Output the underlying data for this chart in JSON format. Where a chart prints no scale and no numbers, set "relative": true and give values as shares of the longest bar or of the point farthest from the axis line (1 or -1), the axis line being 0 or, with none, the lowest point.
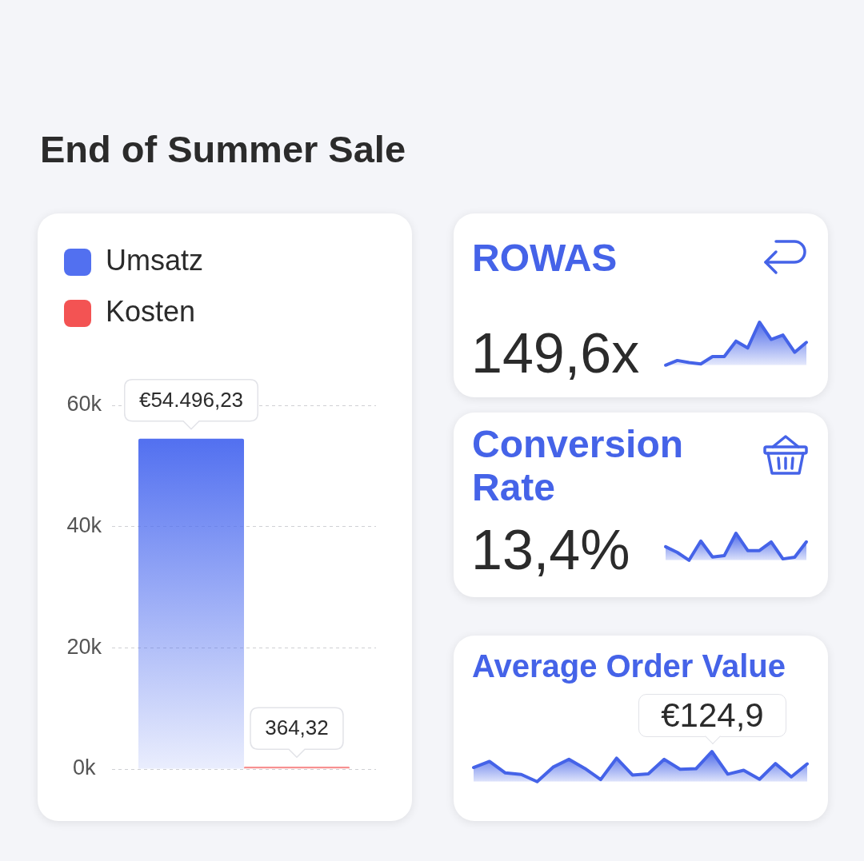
{
  "chart_data": [
    {
      "type": "bar",
      "title": "End of Summer Sale",
      "categories": [
        null
      ],
      "series": [
        {
          "name": "Umsatz",
          "color": "#5270f0",
          "values": [
            54496.23
          ],
          "value_labels": [
            "€54.496,23"
          ]
        },
        {
          "name": "Kosten",
          "color": "#f35353",
          "values": [
            364.32
          ],
          "value_labels": [
            "364,32"
          ]
        }
      ],
      "ylim": [
        0,
        60000
      ],
      "yticks": [
        {
          "value": 0,
          "label": "0k"
        },
        {
          "value": 20000,
          "label": "20k"
        },
        {
          "value": 40000,
          "label": "40k"
        },
        {
          "value": 60000,
          "label": "60k"
        }
      ],
      "grid": "y",
      "legend": "top left",
      "tick_labels": "y"
    },
    {
      "type": "other",
      "title": "ROWAS",
      "annotations": [
        "149,6x"
      ]
    },
    {
      "type": "area",
      "relative": true,
      "categories": [
        null,
        null,
        null,
        null,
        null,
        null,
        null,
        null,
        null,
        null,
        null,
        null,
        null
      ],
      "color": "#4563e8",
      "values": [
        0,
        0.11,
        0.06,
        0.03,
        0.2,
        0.2,
        0.56,
        0.4,
        1,
        0.6,
        0.7,
        0.3,
        0.53
      ]
    },
    {
      "type": "other",
      "title": "Conversion Rate",
      "annotations": [
        "13,4%"
      ]
    },
    {
      "type": "area",
      "relative": true,
      "categories": [
        null,
        null,
        null,
        null,
        null,
        null,
        null,
        null,
        null,
        null,
        null,
        null,
        null
      ],
      "color": "#4563e8",
      "values": [
        0.5,
        0.29,
        0,
        0.71,
        0.12,
        0.17,
        1,
        0.36,
        0.36,
        0.68,
        0.05,
        0.11,
        0.68
      ]
    },
    {
      "type": "other",
      "title": "Average Order Value",
      "annotations": [
        "€124,9"
      ]
    },
    {
      "type": "area",
      "relative": true,
      "categories": [
        null,
        null,
        null,
        null,
        null,
        null,
        null,
        null,
        null,
        null,
        null,
        null,
        null,
        null,
        null,
        null,
        null,
        null,
        null,
        null,
        null,
        null
      ],
      "color": "#4563e8",
      "values": [
        0.47,
        0.67,
        0.29,
        0.24,
        0,
        0.48,
        0.74,
        0.44,
        0.07,
        0.78,
        0.22,
        0.26,
        0.74,
        0.41,
        0.43,
        1,
        0.25,
        0.38,
        0.08,
        0.6,
        0.16,
        0.59
      ]
    }
  ]
}
